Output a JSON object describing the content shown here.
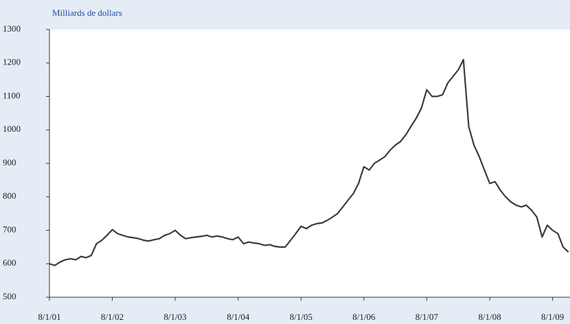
{
  "chart_data": {
    "type": "line",
    "subtitle": "Milliards de dollars",
    "x": [
      "2001-08-01",
      "2001-09-01",
      "2001-10-01",
      "2001-11-01",
      "2001-12-01",
      "2002-01-01",
      "2002-02-01",
      "2002-03-01",
      "2002-04-01",
      "2002-05-01",
      "2002-06-01",
      "2002-07-01",
      "2002-08-01",
      "2002-09-01",
      "2002-10-01",
      "2002-11-01",
      "2002-12-01",
      "2003-01-01",
      "2003-02-01",
      "2003-03-01",
      "2003-04-01",
      "2003-05-01",
      "2003-06-01",
      "2003-07-01",
      "2003-08-01",
      "2003-09-01",
      "2003-10-01",
      "2003-11-01",
      "2003-12-01",
      "2004-01-01",
      "2004-02-01",
      "2004-03-01",
      "2004-04-01",
      "2004-05-01",
      "2004-06-01",
      "2004-07-01",
      "2004-08-01",
      "2004-09-01",
      "2004-10-01",
      "2004-11-01",
      "2004-12-01",
      "2005-01-01",
      "2005-02-01",
      "2005-03-01",
      "2005-04-01",
      "2005-05-01",
      "2005-06-01",
      "2005-07-01",
      "2005-08-01",
      "2005-09-01",
      "2005-10-01",
      "2005-11-01",
      "2005-12-01",
      "2006-01-01",
      "2006-02-01",
      "2006-03-01",
      "2006-04-01",
      "2006-05-01",
      "2006-06-01",
      "2006-07-01",
      "2006-08-01",
      "2006-09-01",
      "2006-10-01",
      "2006-11-01",
      "2006-12-01",
      "2007-01-01",
      "2007-02-01",
      "2007-03-01",
      "2007-04-01",
      "2007-05-01",
      "2007-06-01",
      "2007-07-01",
      "2007-08-01",
      "2007-09-01",
      "2007-10-01",
      "2007-11-01",
      "2007-12-01",
      "2008-01-01",
      "2008-02-01",
      "2008-03-01",
      "2008-04-01",
      "2008-05-01",
      "2008-06-01",
      "2008-07-01",
      "2008-08-01",
      "2008-09-01",
      "2008-10-01",
      "2008-11-01",
      "2008-12-01",
      "2009-01-01",
      "2009-02-01",
      "2009-03-01",
      "2009-04-01",
      "2009-05-01",
      "2009-06-01",
      "2009-07-01",
      "2009-08-01",
      "2009-09-01",
      "2009-10-01",
      "2009-11-01"
    ],
    "series": [
      {
        "color": "#3a3a3a",
        "values": [
          600,
          595,
          605,
          612,
          615,
          612,
          622,
          618,
          625,
          660,
          670,
          685,
          702,
          690,
          685,
          680,
          678,
          675,
          670,
          668,
          672,
          675,
          685,
          690,
          700,
          685,
          675,
          678,
          680,
          682,
          685,
          680,
          683,
          680,
          675,
          672,
          680,
          660,
          665,
          662,
          660,
          655,
          657,
          652,
          650,
          650,
          670,
          690,
          712,
          705,
          715,
          720,
          722,
          730,
          740,
          750,
          770,
          790,
          810,
          840,
          890,
          880,
          900,
          910,
          920,
          940,
          955,
          965,
          985,
          1010,
          1035,
          1065,
          1120,
          1100,
          1100,
          1105,
          1140,
          1160,
          1180,
          1210,
          1010,
          955,
          920,
          880,
          840,
          845,
          820,
          800,
          785,
          775,
          770,
          775,
          760,
          740,
          680,
          715,
          700,
          690,
          650,
          635
        ]
      }
    ],
    "xlim": [
      "2001-08-01",
      "2009-11-10"
    ],
    "xticks": [
      {
        "value": "2001-08-01",
        "label": "8/1/01"
      },
      {
        "value": "2002-08-01",
        "label": "8/1/02"
      },
      {
        "value": "2003-08-01",
        "label": "8/1/03"
      },
      {
        "value": "2004-08-01",
        "label": "8/1/04"
      },
      {
        "value": "2005-08-01",
        "label": "8/1/05"
      },
      {
        "value": "2006-08-01",
        "label": "8/1/06"
      },
      {
        "value": "2007-08-01",
        "label": "8/1/07"
      },
      {
        "value": "2008-08-01",
        "label": "8/1/08"
      },
      {
        "value": "2009-08-01",
        "label": "8/1/09"
      }
    ],
    "ylim": [
      500,
      1300
    ],
    "yticks": [
      500,
      600,
      700,
      800,
      900,
      1000,
      1100,
      1200,
      1300
    ]
  }
}
